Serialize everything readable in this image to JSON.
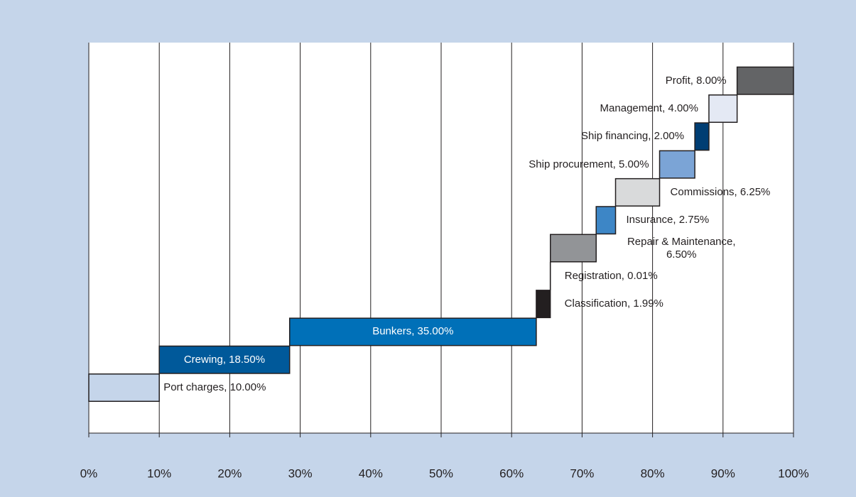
{
  "chart_data": {
    "type": "waterfall",
    "value_labels": [
      "Port charges, 10.00%",
      "Crewing, 18.50%",
      "Bunkers, 35.00%",
      "Classification, 1.99%",
      "Registration, 0.01%",
      "Repair & Maintenance, 6.50%",
      "Insurance, 2.75%",
      "Commissions, 6.25%",
      "Ship procurement, 5.00%",
      "Ship financing, 2.00%",
      "Management, 4.00%",
      "Profit, 8.00%"
    ],
    "values": [
      10,
      18.5,
      35,
      1.99,
      0.01,
      6.5,
      2.75,
      6.25,
      5,
      2,
      4,
      8
    ],
    "colors": [
      "#c5d5ea",
      "#00599a",
      "#0070b8",
      "#231f20",
      "#231f20",
      "#929497",
      "#3d86c6",
      "#d9dadb",
      "#7ba4d6",
      "#003e73",
      "#e4e9f4",
      "#636466"
    ],
    "xlim": [
      0,
      100
    ],
    "xticks": [
      {
        "value": 0,
        "label": "0%"
      },
      {
        "value": 10,
        "label": "10%"
      },
      {
        "value": 20,
        "label": "20%"
      },
      {
        "value": 30,
        "label": "30%"
      },
      {
        "value": 40,
        "label": "40%"
      },
      {
        "value": 50,
        "label": "50%"
      },
      {
        "value": 60,
        "label": "60%"
      },
      {
        "value": 70,
        "label": "70%"
      },
      {
        "value": 80,
        "label": "80%"
      },
      {
        "value": 90,
        "label": "90%"
      },
      {
        "value": 100,
        "label": "100%"
      }
    ],
    "grid": true
  }
}
